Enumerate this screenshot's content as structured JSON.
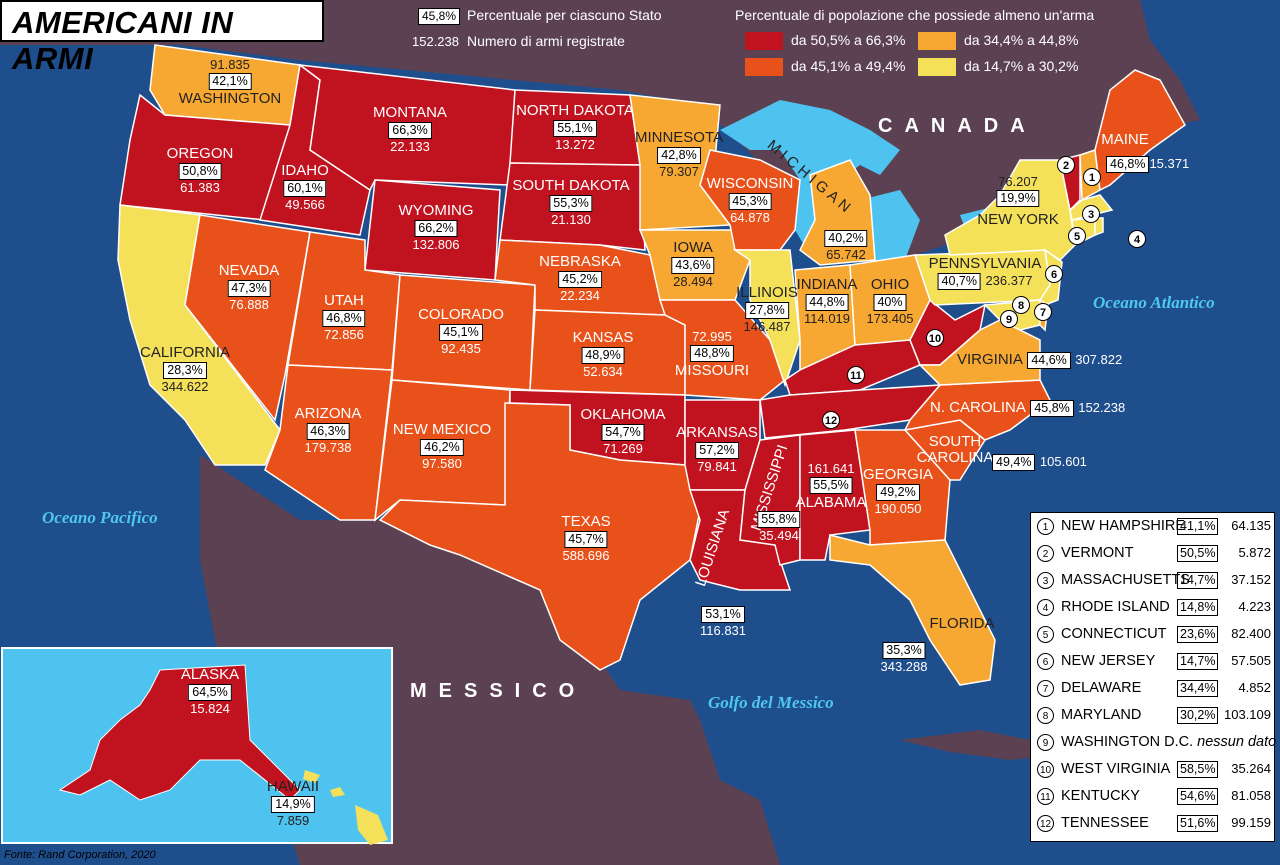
{
  "title": "AMERICANI IN ARMI",
  "legend": {
    "percent_sample": "45,8%",
    "percent_desc": "Percentuale per ciascuno Stato",
    "guns_sample": "152.238",
    "guns_desc": "Numero di armi registrate",
    "classes_title": "Percentuale di popolazione che possiede almeno un'arma",
    "classes": [
      {
        "label": "da 50,5% a 66,3%",
        "color": "#c1121f"
      },
      {
        "label": "da 45,1% a 49,4%",
        "color": "#e9511b"
      },
      {
        "label": "da 34,4% a 44,8%",
        "color": "#f7a832"
      },
      {
        "label": "da 14,7% a 30,2%",
        "color": "#f5e05a"
      }
    ]
  },
  "colors": {
    "sea": "#1f4e8c",
    "land_other": "#5c4152",
    "alaska_sea": "#4fc3ef",
    "lakes": "#4fc3ef",
    "border": "#ffffff"
  },
  "labels": {
    "canada": "CANADA",
    "messico": "MESSICO",
    "atlantic": "Oceano Atlantico",
    "pacific": "Oceano Pacifico",
    "gulf": "Golfo del Messico"
  },
  "states": [
    {
      "name": "Washington",
      "pct": "42,1%",
      "guns": "91.835"
    },
    {
      "name": "Oregon",
      "pct": "50,8%",
      "guns": "61.383"
    },
    {
      "name": "California",
      "pct": "28,3%",
      "guns": "344.622"
    },
    {
      "name": "Idaho",
      "pct": "60,1%",
      "guns": "49.566"
    },
    {
      "name": "Nevada",
      "pct": "47,3%",
      "guns": "76.888"
    },
    {
      "name": "Montana",
      "pct": "66,3%",
      "guns": "22.133"
    },
    {
      "name": "Wyoming",
      "pct": "66,2%",
      "guns": "132.806"
    },
    {
      "name": "Utah",
      "pct": "46,8%",
      "guns": "72.856"
    },
    {
      "name": "Colorado",
      "pct": "45,1%",
      "guns": "92.435"
    },
    {
      "name": "Arizona",
      "pct": "46,3%",
      "guns": "179.738"
    },
    {
      "name": "New Mexico",
      "pct": "46,2%",
      "guns": "97.580"
    },
    {
      "name": "North Dakota",
      "pct": "55,1%",
      "guns": "13.272"
    },
    {
      "name": "South Dakota",
      "pct": "55,3%",
      "guns": "21.130"
    },
    {
      "name": "Nebraska",
      "pct": "45,2%",
      "guns": "22.234"
    },
    {
      "name": "Kansas",
      "pct": "48,9%",
      "guns": "52.634"
    },
    {
      "name": "Oklahoma",
      "pct": "54,7%",
      "guns": "71.269"
    },
    {
      "name": "Texas",
      "pct": "45,7%",
      "guns": "588.696"
    },
    {
      "name": "Minnesota",
      "pct": "42,8%",
      "guns": "79.307"
    },
    {
      "name": "Iowa",
      "pct": "43,6%",
      "guns": "28.494"
    },
    {
      "name": "Missouri",
      "pct": "48,8%",
      "guns": "72.995"
    },
    {
      "name": "Arkansas",
      "pct": "57,2%",
      "guns": "79.841"
    },
    {
      "name": "Louisiana",
      "pct": "53,1%",
      "guns": "116.831"
    },
    {
      "name": "Wisconsin",
      "pct": "45,3%",
      "guns": "64.878"
    },
    {
      "name": "Illinois",
      "pct": "27,8%",
      "guns": "146.487"
    },
    {
      "name": "Michigan",
      "pct": "40,2%",
      "guns": "65.742"
    },
    {
      "name": "Indiana",
      "pct": "44,8%",
      "guns": "114.019"
    },
    {
      "name": "Ohio",
      "pct": "40%",
      "guns": "173.405"
    },
    {
      "name": "Mississippi",
      "pct": "55,8%",
      "guns": "35.494"
    },
    {
      "name": "Alabama",
      "pct": "55,5%",
      "guns": "161.641"
    },
    {
      "name": "Georgia",
      "pct": "49,2%",
      "guns": "190.050"
    },
    {
      "name": "Florida",
      "pct": "35,3%",
      "guns": "343.288"
    },
    {
      "name": "South Carolina",
      "pct": "49,4%",
      "guns": "105.601"
    },
    {
      "name": "N. Carolina",
      "pct": "45,8%",
      "guns": "152.238"
    },
    {
      "name": "Virginia",
      "pct": "44,6%",
      "guns": "307.822"
    },
    {
      "name": "Pennsylvania",
      "pct": "40,7%",
      "guns": "236.377"
    },
    {
      "name": "New York",
      "pct": "19,9%",
      "guns": "76.207"
    },
    {
      "name": "Maine",
      "pct": "46,8%",
      "guns": "15.371"
    },
    {
      "name": "Alaska",
      "pct": "64,5%",
      "guns": "15.824"
    },
    {
      "name": "Hawaii",
      "pct": "14,9%",
      "guns": "7.859"
    }
  ],
  "numbered_states": [
    {
      "num": "1",
      "name": "New Hampshire",
      "pct": "41,1%",
      "guns": "64.135"
    },
    {
      "num": "2",
      "name": "Vermont",
      "pct": "50,5%",
      "guns": "5.872"
    },
    {
      "num": "3",
      "name": "Massachusetts",
      "pct": "14,7%",
      "guns": "37.152"
    },
    {
      "num": "4",
      "name": "Rhode Island",
      "pct": "14,8%",
      "guns": "4.223"
    },
    {
      "num": "5",
      "name": "Connecticut",
      "pct": "23,6%",
      "guns": "82.400"
    },
    {
      "num": "6",
      "name": "New Jersey",
      "pct": "14,7%",
      "guns": "57.505"
    },
    {
      "num": "7",
      "name": "Delaware",
      "pct": "34,4%",
      "guns": "4.852"
    },
    {
      "num": "8",
      "name": "Maryland",
      "pct": "30,2%",
      "guns": "103.109"
    },
    {
      "num": "9",
      "name": "Washington D.C.",
      "nodata": "nessun dato"
    },
    {
      "num": "10",
      "name": "West Virginia",
      "pct": "58,5%",
      "guns": "35.264"
    },
    {
      "num": "11",
      "name": "Kentucky",
      "pct": "54,6%",
      "guns": "81.058"
    },
    {
      "num": "12",
      "name": "Tennessee",
      "pct": "51,6%",
      "guns": "99.159"
    }
  ],
  "source": "Fonte: Rand Corporation, 2020"
}
